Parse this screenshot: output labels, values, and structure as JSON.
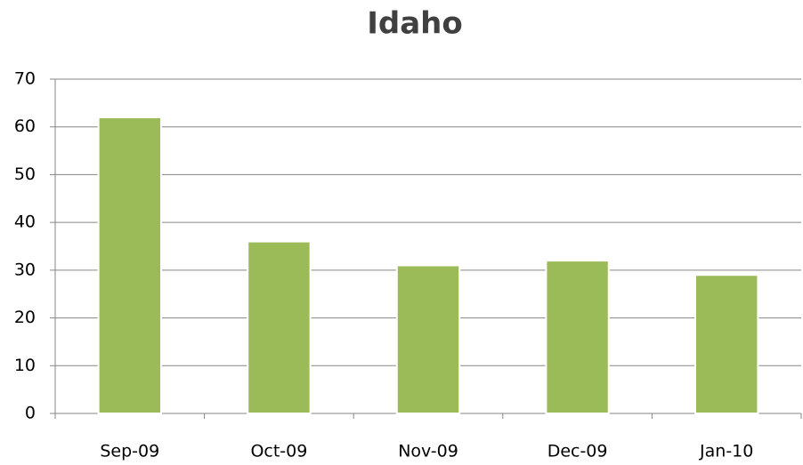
{
  "chart_data": {
    "type": "bar",
    "title": "Idaho",
    "categories": [
      "Sep-09",
      "Oct-09",
      "Nov-09",
      "Dec-09",
      "Jan-10"
    ],
    "values": [
      62,
      36,
      31,
      32,
      29
    ],
    "color": "#9bbb59",
    "ylim": [
      0,
      70
    ],
    "yticks": [
      0,
      10,
      20,
      30,
      40,
      50,
      60,
      70
    ],
    "grid": true
  }
}
